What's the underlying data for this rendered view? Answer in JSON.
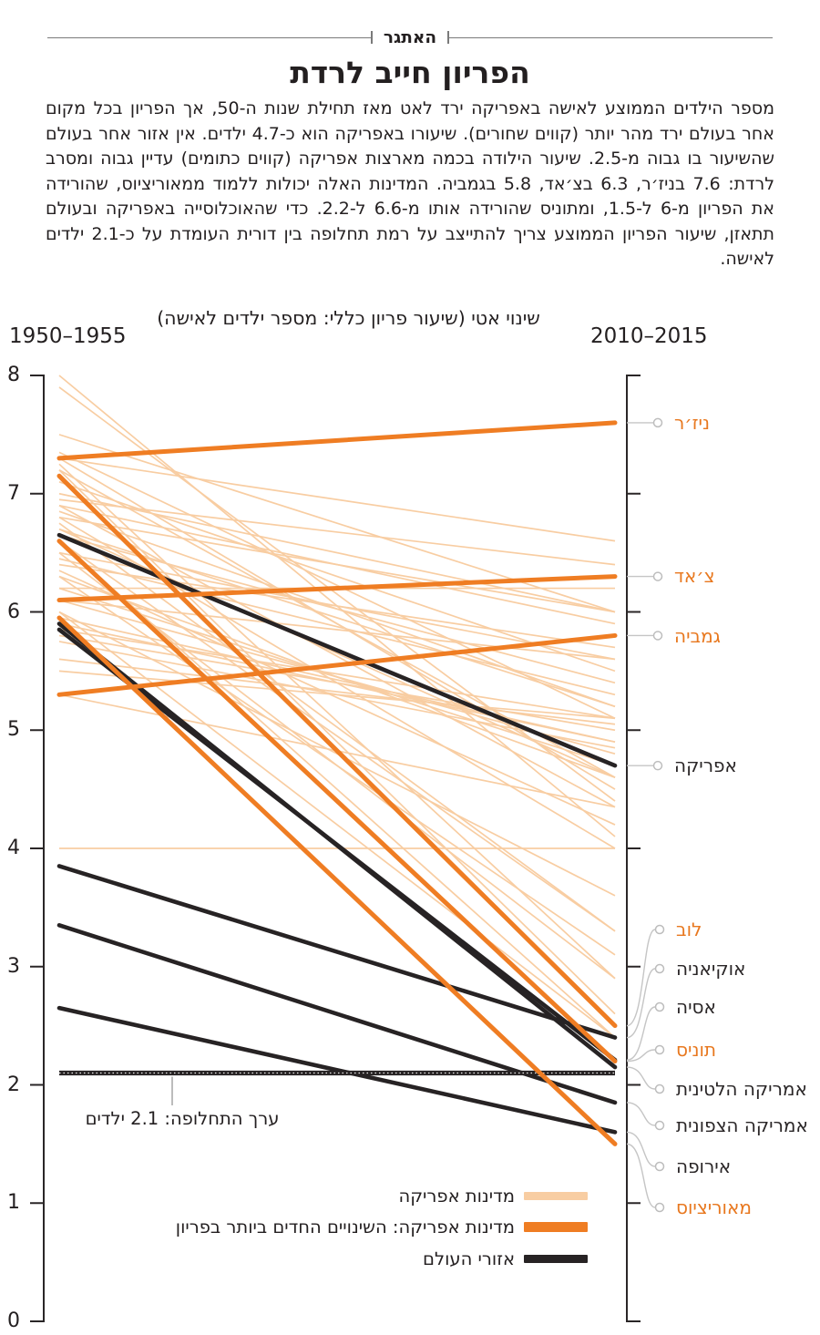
{
  "header": {
    "kicker": "האתגר",
    "title": "הפריון חייב לרדת",
    "paragraph": "מספר הילדים הממוצע לאישה באפריקה ירד לאט מאז תחילת שנות ה-50, אך הפריון בכל מקום אחר בעולם ירד מהר יותר (קווים שחורים). שיעורו באפריקה הוא כ-4.7 ילדים. אין אזור אחר בעולם שהשיעור בו גבוה מ-2.5. שיעור הילודה בכמה מארצות אפריקה (קווים כתומים) עדיין גבוה ומסרב לרדת: 7.6 בניז׳ר, 6.3 בצ׳אד, 5.8 בגמביה. המדינות האלה יכולות ללמוד ממאוריציוס, שהורידה את הפריון מ-6 ל-1.5, ומתוניס שהורידה אותו מ-6.6 ל-2.2. כדי שהאוכלוסייה באפריקה ובעולם תתאזן, שיעור הפריון הממוצע צריך להתייצב על רמת תחלופה בין דורית העומדת על כ-2.1 ילדים לאישה."
  },
  "chart": {
    "subtitle": "שינוי אטי (שיעור פריון כללי: מספר ילדים לאישה)",
    "left_period": "1950–1955",
    "right_period": "2010–2015",
    "y_ticks": [
      "8",
      "7",
      "6",
      "5",
      "4",
      "3",
      "2",
      "1",
      "0"
    ],
    "annotation_text": "ערך התחלופה: 2.1 ילדים",
    "legend": [
      {
        "label": "מדינות אפריקה",
        "color": "#F8CDA2"
      },
      {
        "label": "מדינות אפריקה: השינויים החדים ביותר בפריון",
        "color": "#EF7D23"
      },
      {
        "label": "אזורי העולם",
        "color": "#272324"
      }
    ],
    "colors": {
      "africa_thin": "#F8CDA2",
      "africa_highlight": "#EF7D23",
      "regions": "#272324",
      "orange_label_text": "#E8781F",
      "connector_gray": "#C5C5C5"
    }
  },
  "chart_data": {
    "type": "line",
    "subtype": "slope-chart",
    "x_periods": [
      "1950–1955",
      "2010–2015"
    ],
    "ylabel": "שיעור פריון כללי: מספר ילדים לאישה",
    "ylim": [
      0,
      8
    ],
    "replacement_level": 2.1,
    "highlight_countries": [
      {
        "name": "ניז׳ר",
        "start": 7.3,
        "end": 7.6
      },
      {
        "name": "צ׳אד",
        "start": 6.1,
        "end": 6.3
      },
      {
        "name": "גמביה",
        "start": 5.3,
        "end": 5.8
      },
      {
        "name": "לוב",
        "start": 7.15,
        "end": 2.5
      },
      {
        "name": "תוניס",
        "start": 6.6,
        "end": 2.2
      },
      {
        "name": "מאוריציוס",
        "start": 5.95,
        "end": 1.5
      }
    ],
    "world_regions": [
      {
        "name": "אפריקה",
        "start": 6.65,
        "end": 4.7
      },
      {
        "name": "אסיה",
        "start": 5.85,
        "end": 2.21
      },
      {
        "name": "אמריקה הלטינית",
        "start": 5.9,
        "end": 2.15
      },
      {
        "name": "אוקיאניה",
        "start": 3.85,
        "end": 2.4
      },
      {
        "name": "אמריקה הצפונית",
        "start": 3.35,
        "end": 1.85
      },
      {
        "name": "אירופה",
        "start": 2.65,
        "end": 1.6
      }
    ],
    "africa_countries_unlabeled": [
      [
        8.0,
        4.1
      ],
      [
        7.9,
        4.4
      ],
      [
        7.5,
        6.0
      ],
      [
        7.35,
        5.1
      ],
      [
        7.3,
        6.6
      ],
      [
        7.3,
        4.5
      ],
      [
        7.25,
        2.9
      ],
      [
        7.2,
        4.6
      ],
      [
        7.2,
        2.6
      ],
      [
        7.1,
        5.5
      ],
      [
        7.0,
        6.0
      ],
      [
        6.95,
        6.4
      ],
      [
        6.9,
        5.9
      ],
      [
        6.9,
        4.35
      ],
      [
        6.85,
        5.2
      ],
      [
        6.8,
        6.0
      ],
      [
        6.8,
        4.0
      ],
      [
        6.75,
        3.3
      ],
      [
        6.7,
        5.2
      ],
      [
        6.7,
        4.6
      ],
      [
        6.65,
        5.4
      ],
      [
        6.6,
        3.3
      ],
      [
        6.6,
        2.4
      ],
      [
        6.5,
        5.6
      ],
      [
        6.5,
        2.9
      ],
      [
        6.45,
        5.3
      ],
      [
        6.4,
        5.7
      ],
      [
        6.35,
        4.2
      ],
      [
        6.3,
        4.6
      ],
      [
        6.3,
        3.1
      ],
      [
        6.2,
        6.2
      ],
      [
        6.2,
        4.7
      ],
      [
        6.1,
        5.6
      ],
      [
        6.1,
        4.8
      ],
      [
        6.0,
        3.6
      ],
      [
        6.0,
        2.4
      ],
      [
        5.95,
        4.9
      ],
      [
        5.9,
        4.9
      ],
      [
        5.85,
        5.1
      ],
      [
        5.8,
        5.0
      ],
      [
        5.75,
        4.85
      ],
      [
        5.6,
        5.05
      ],
      [
        5.5,
        5.1
      ],
      [
        5.3,
        4.35
      ],
      [
        4.0,
        4.0
      ]
    ]
  }
}
